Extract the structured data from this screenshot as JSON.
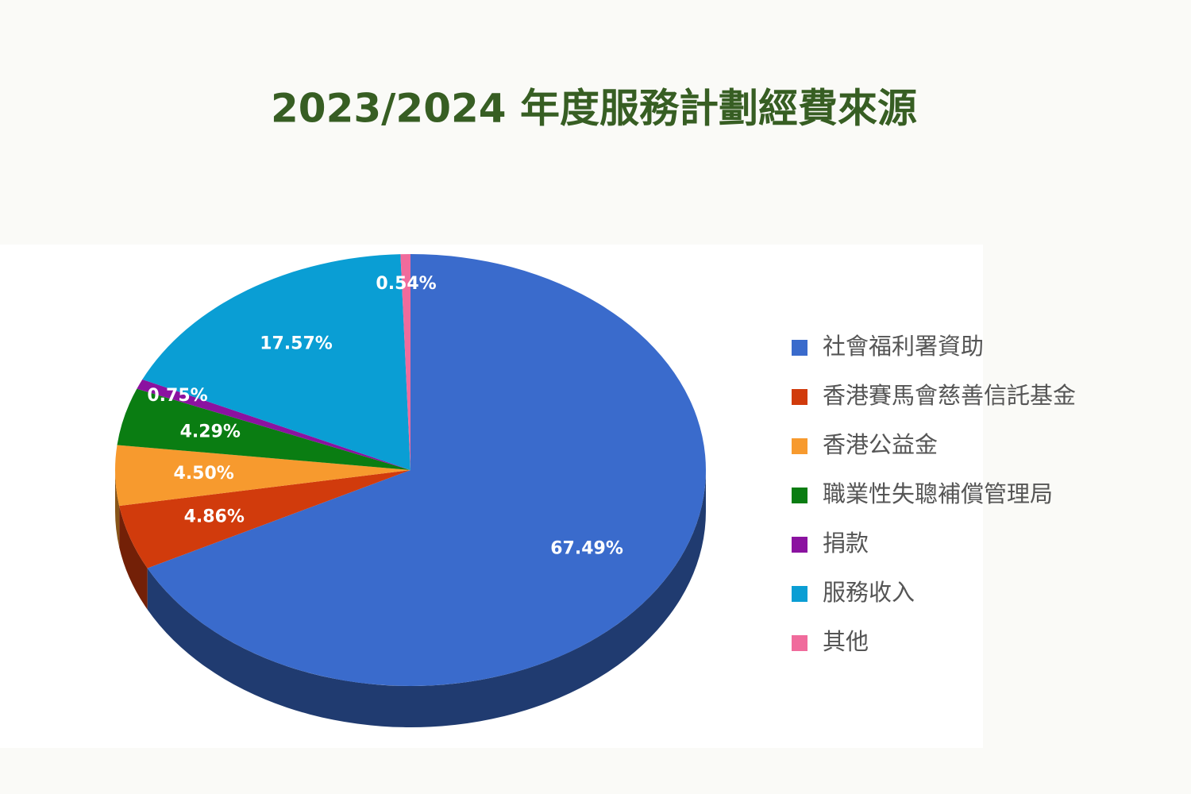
{
  "chart_data": {
    "type": "pie",
    "title": "2023/2024  年度服務計劃經費來源",
    "categories": [
      "社會福利署資助",
      "香港賽馬會慈善信託基金",
      "香港公益金",
      "職業性失聰補償管理局",
      "捐款",
      "服務收入",
      "其他"
    ],
    "values": [
      67.49,
      4.86,
      4.5,
      4.29,
      0.75,
      17.57,
      0.54
    ],
    "value_labels": [
      "67.49%",
      "4.86%",
      "4.50%",
      "4.29%",
      "0.75%",
      "17.57%",
      "0.54%"
    ],
    "colors": [
      "#3a6bcc",
      "#d13b0c",
      "#f79a2e",
      "#0a7d12",
      "#8b12a0",
      "#0a9ed4",
      "#f06b9c"
    ],
    "legend": "right"
  }
}
